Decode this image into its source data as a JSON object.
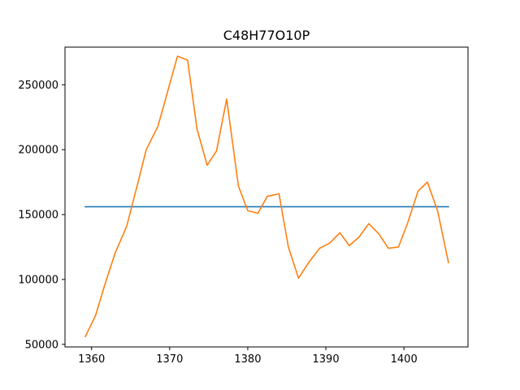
{
  "chart_data": {
    "type": "line",
    "title": "C48H77O10P",
    "xlabel": "",
    "ylabel": "",
    "xlim": [
      1356.6,
      1408.2
    ],
    "ylim": [
      48000,
      279000
    ],
    "x_ticks": [
      1360,
      1370,
      1380,
      1390,
      1400
    ],
    "x_tick_labels": [
      "1360",
      "1370",
      "1380",
      "1390",
      "1400"
    ],
    "y_ticks": [
      50000,
      100000,
      150000,
      200000,
      250000
    ],
    "y_tick_labels": [
      "50000",
      "100000",
      "150000",
      "200000",
      "250000"
    ],
    "grid": false,
    "legend": "none",
    "series": [
      {
        "color": "#1f77b4",
        "x": [
          1359.2,
          1405.7
        ],
        "y": [
          156000,
          156000
        ]
      },
      {
        "color": "#ff7f0e",
        "x": [
          1359.2,
          1360.5,
          1361.7,
          1363.0,
          1364.5,
          1366.0,
          1367.0,
          1368.5,
          1369.8,
          1371.0,
          1372.3,
          1373.5,
          1374.8,
          1376.0,
          1377.3,
          1378.8,
          1380.0,
          1381.3,
          1382.5,
          1384.0,
          1385.2,
          1386.5,
          1387.8,
          1389.2,
          1390.5,
          1391.8,
          1393.0,
          1394.3,
          1395.5,
          1396.8,
          1398.0,
          1399.3,
          1400.5,
          1401.8,
          1403.0,
          1404.3,
          1405.7
        ],
        "y": [
          56000,
          72000,
          96000,
          120000,
          141000,
          176000,
          200000,
          218000,
          246000,
          272000,
          269000,
          216000,
          188000,
          199000,
          239000,
          172000,
          153000,
          151000,
          164000,
          166000,
          125000,
          101000,
          113000,
          124000,
          128000,
          136000,
          126000,
          133000,
          143000,
          135000,
          124000,
          125000,
          144000,
          168000,
          175000,
          153000,
          113000
        ]
      }
    ]
  }
}
